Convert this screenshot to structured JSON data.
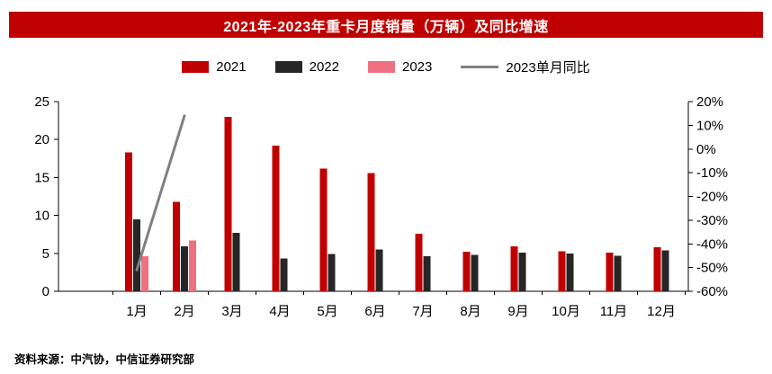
{
  "title": "2021年-2023年重卡月度销量（万辆）及同比增速",
  "title_bg_color": "#C00000",
  "source": "资料来源：中汽协，中信证券研究部",
  "legend": [
    {
      "label": "2021",
      "color": "#C00000",
      "type": "rect"
    },
    {
      "label": "2022",
      "color": "#262626",
      "type": "rect"
    },
    {
      "label": "2023",
      "color": "#EF7080",
      "type": "rect"
    },
    {
      "label": "2023单月同比",
      "color": "#808080",
      "type": "line"
    }
  ],
  "chart_data": {
    "type": "bar",
    "title": "2021年-2023年重卡月度销量（万辆）及同比增速",
    "categories": [
      "1月",
      "2月",
      "3月",
      "4月",
      "5月",
      "6月",
      "7月",
      "8月",
      "9月",
      "10月",
      "11月",
      "12月"
    ],
    "series": [
      {
        "name": "2021",
        "type": "bar",
        "axis": "left",
        "color": "#C00000",
        "values": [
          18.3,
          11.8,
          23.0,
          19.2,
          16.2,
          15.6,
          7.6,
          5.2,
          5.9,
          5.3,
          5.1,
          5.8
        ]
      },
      {
        "name": "2022",
        "type": "bar",
        "axis": "left",
        "color": "#262626",
        "values": [
          9.5,
          5.9,
          7.7,
          4.3,
          4.9,
          5.5,
          4.6,
          4.8,
          5.1,
          5.0,
          4.7,
          5.4
        ]
      },
      {
        "name": "2023",
        "type": "bar",
        "axis": "left",
        "color": "#EF7080",
        "values": [
          4.6,
          6.7,
          null,
          null,
          null,
          null,
          null,
          null,
          null,
          null,
          null,
          null
        ]
      },
      {
        "name": "2023单月同比",
        "type": "line",
        "axis": "right",
        "color": "#808080",
        "values": [
          -51,
          14,
          null,
          null,
          null,
          null,
          null,
          null,
          null,
          null,
          null,
          null
        ]
      }
    ],
    "left_axis": {
      "min": 0,
      "max": 25,
      "ticks": [
        0,
        5,
        10,
        15,
        20,
        25
      ]
    },
    "right_axis": {
      "min": -60,
      "max": 20,
      "tick_labels": [
        "20%",
        "10%",
        "0%",
        "-10%",
        "-20%",
        "-30%",
        "-40%",
        "-50%",
        "-60%"
      ]
    },
    "grid": false,
    "legend_position": "top"
  }
}
